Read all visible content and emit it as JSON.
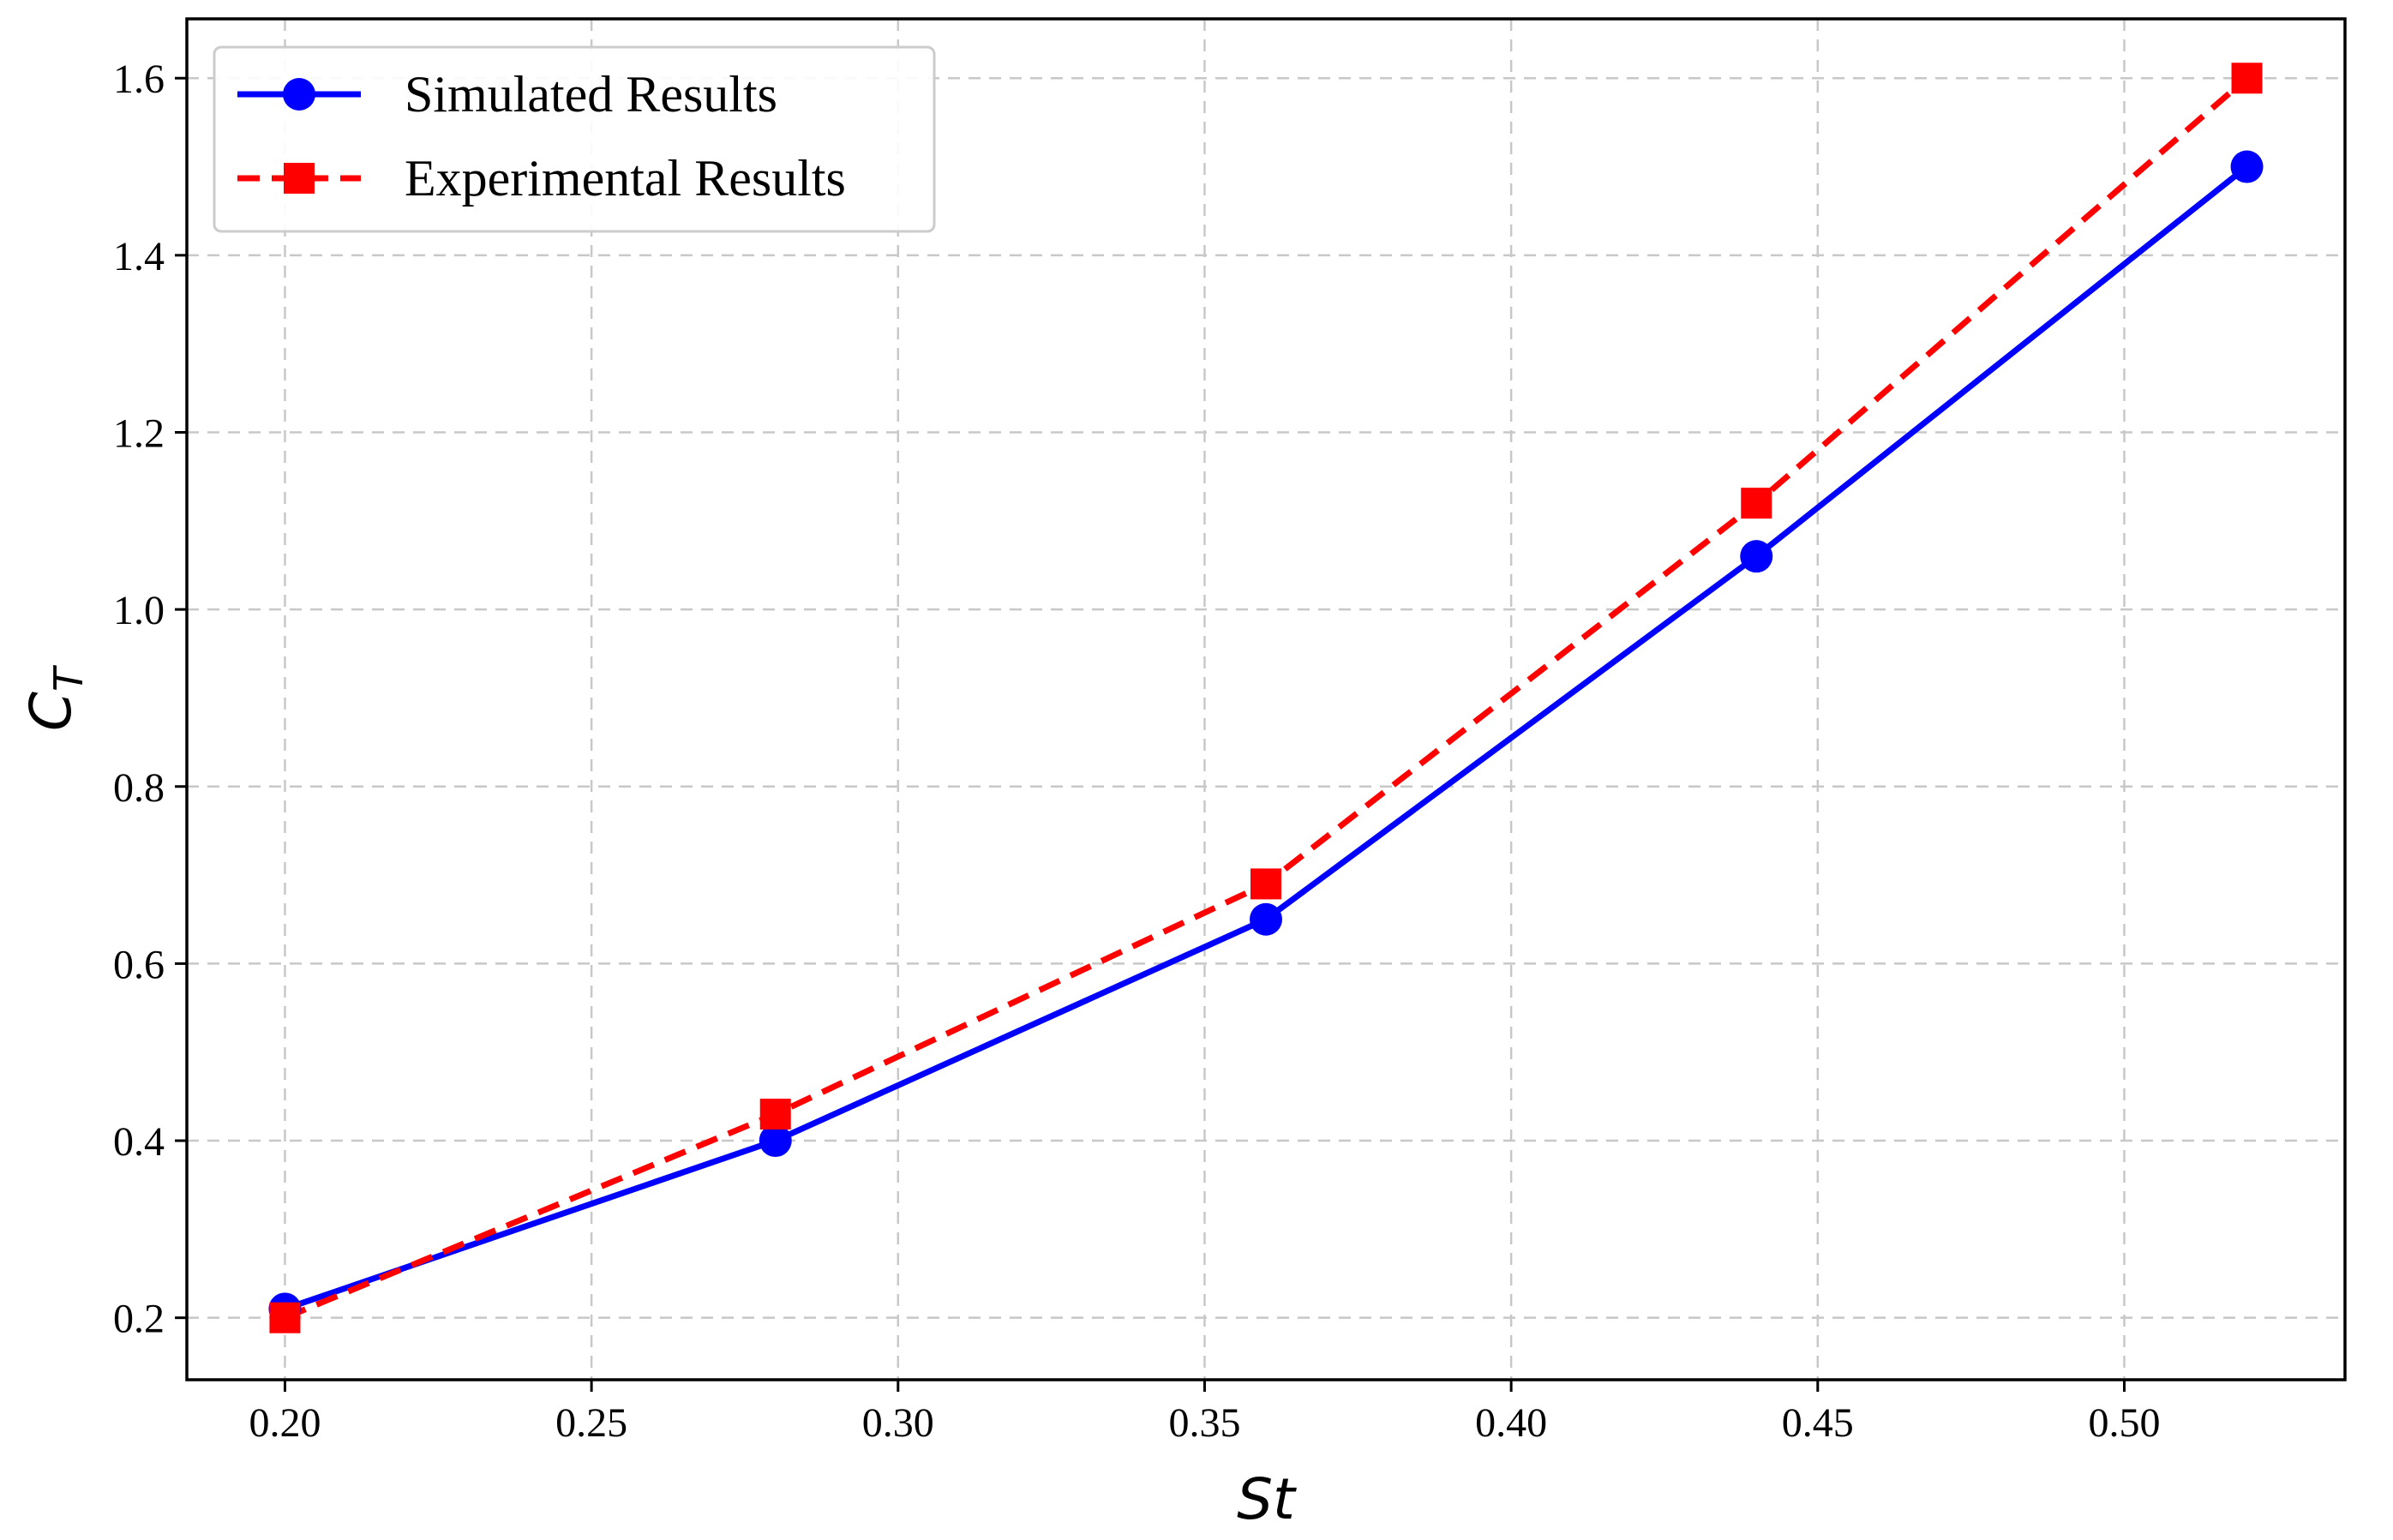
{
  "chart_data": {
    "type": "line",
    "title": "",
    "xlabel": "St",
    "ylabel": {
      "main": "C",
      "sub": "T"
    },
    "xlim": [
      0.184,
      0.536
    ],
    "ylim": [
      0.13,
      1.667
    ],
    "xticks": [
      0.2,
      0.25,
      0.3,
      0.35,
      0.4,
      0.45,
      0.5
    ],
    "xtick_labels": [
      "0.20",
      "0.25",
      "0.30",
      "0.35",
      "0.40",
      "0.45",
      "0.50"
    ],
    "yticks": [
      0.2,
      0.4,
      0.6,
      0.8,
      1.0,
      1.2,
      1.4,
      1.6
    ],
    "ytick_labels": [
      "0.2",
      "0.4",
      "0.6",
      "0.8",
      "1.0",
      "1.2",
      "1.4",
      "1.6"
    ],
    "grid": true,
    "legend_position": "top-left",
    "x": [
      0.2,
      0.28,
      0.36,
      0.44,
      0.52
    ],
    "series": [
      {
        "name": "Simulated Results",
        "values": [
          0.21,
          0.4,
          0.65,
          1.06,
          1.5
        ],
        "color": "#0000ff",
        "line_style": "solid",
        "marker": "circle"
      },
      {
        "name": "Experimental Results",
        "values": [
          0.2,
          0.43,
          0.69,
          1.12,
          1.6
        ],
        "color": "#ff0000",
        "line_style": "dashed",
        "marker": "square"
      }
    ]
  }
}
